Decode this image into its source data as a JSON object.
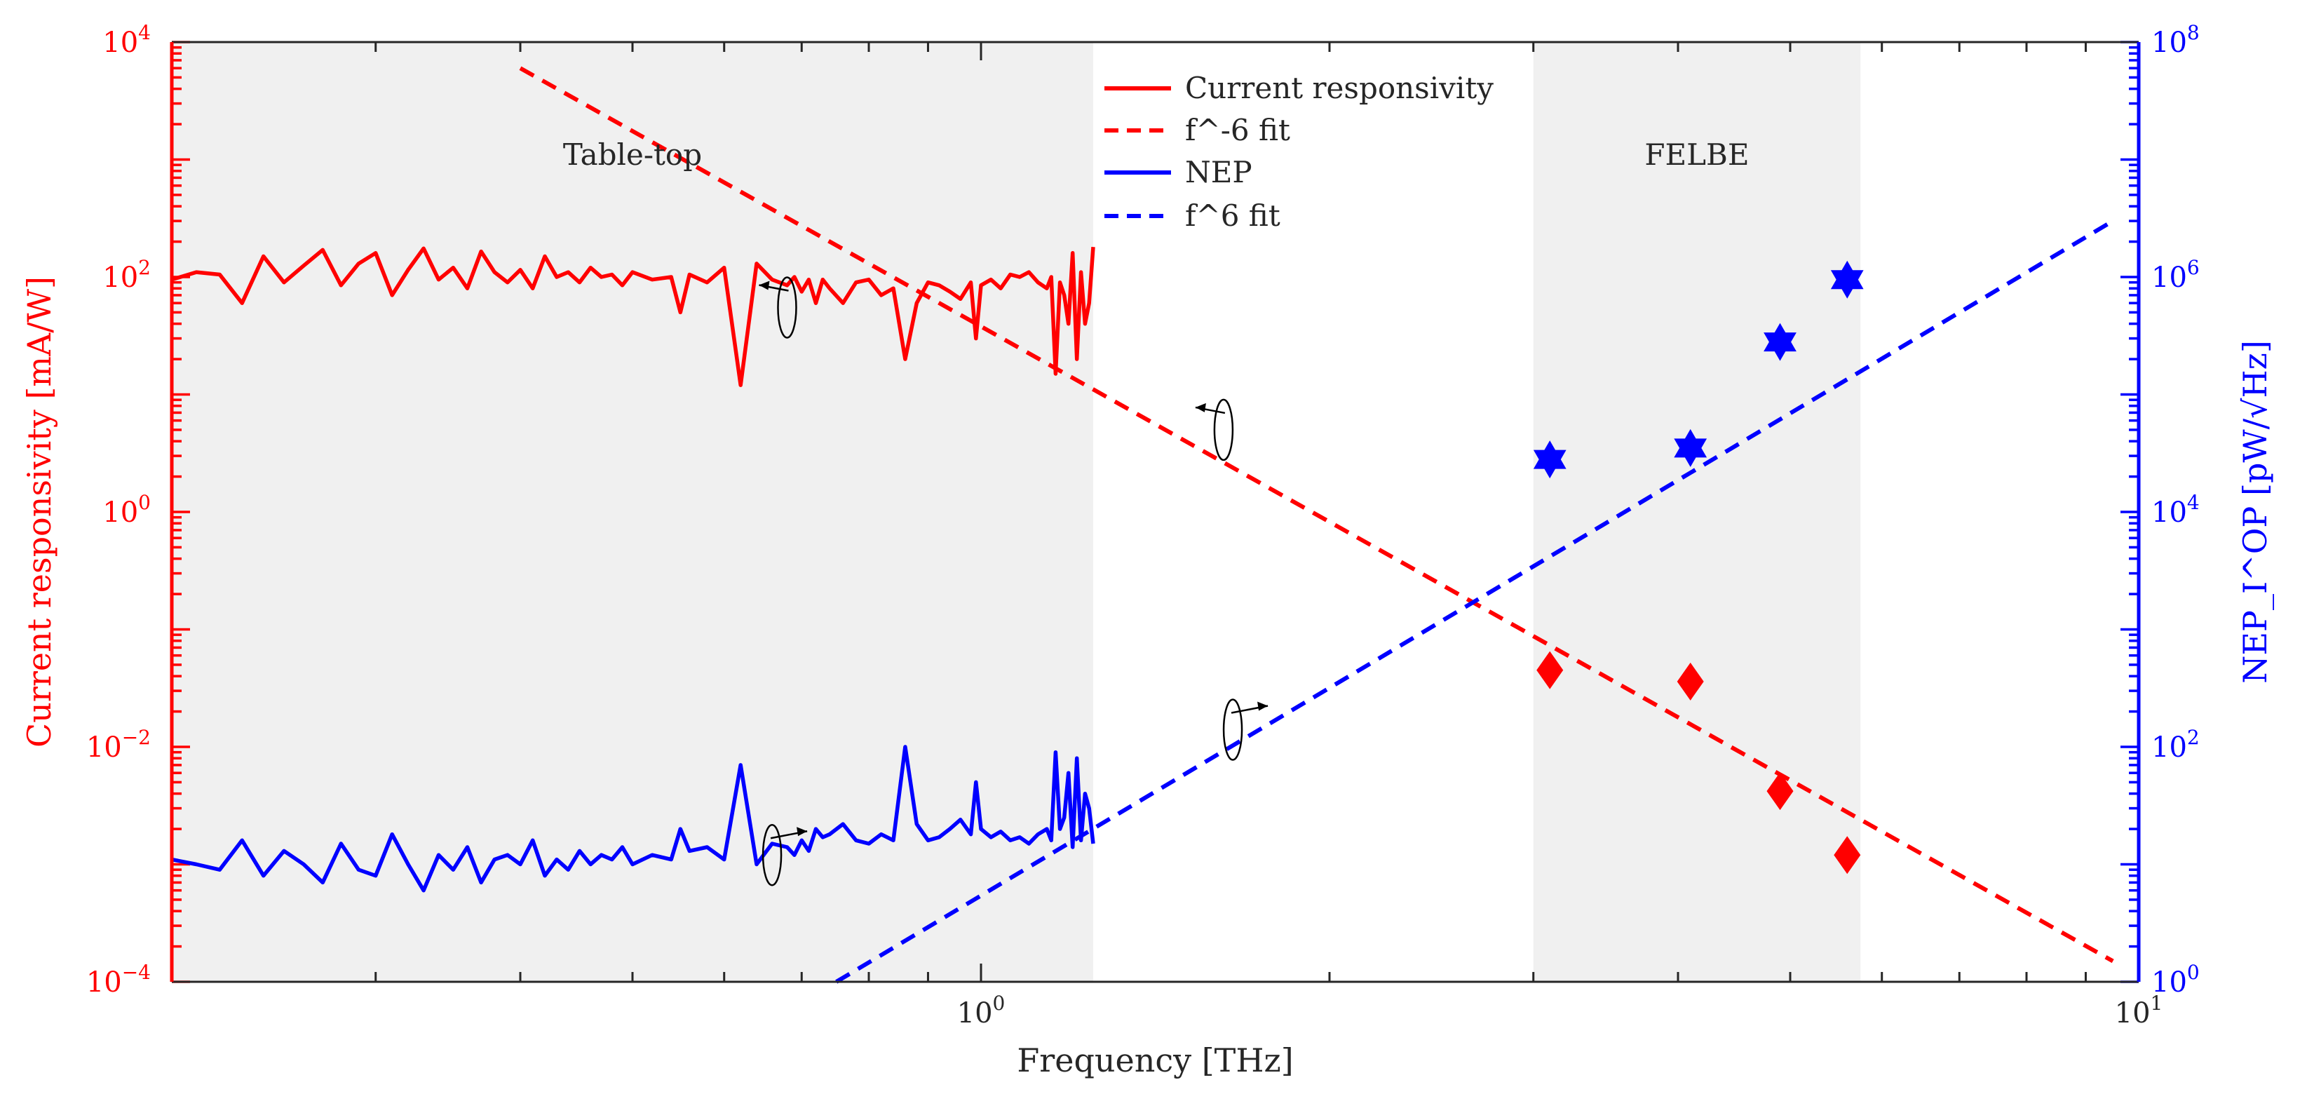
{
  "chart_data": {
    "type": "line",
    "title": "",
    "xlabel": "Frequency [THz]",
    "xscale": "log",
    "xlim": [
      0.2,
      10
    ],
    "xticks": [
      {
        "value": 1,
        "label": "10^0"
      },
      {
        "value": 10,
        "label": "10^1"
      }
    ],
    "y_left": {
      "label": "Current responsivity [mA/W]",
      "scale": "log",
      "lim": [
        0.0001,
        10000
      ],
      "color": "#ff0000",
      "ticks": [
        {
          "value": 0.0001,
          "label": "10^-4"
        },
        {
          "value": 0.01,
          "label": "10^-2"
        },
        {
          "value": 1,
          "label": "10^0"
        },
        {
          "value": 100,
          "label": "10^2"
        },
        {
          "value": 10000,
          "label": "10^4"
        }
      ]
    },
    "y_right": {
      "label": "NEP_I^OP [pW/√Hz]",
      "scale": "log",
      "lim": [
        1,
        100000000
      ],
      "color": "#0000ff",
      "ticks": [
        {
          "value": 1,
          "label": "10^0"
        },
        {
          "value": 100,
          "label": "10^2"
        },
        {
          "value": 10000,
          "label": "10^4"
        },
        {
          "value": 1000000,
          "label": "10^6"
        },
        {
          "value": 100000000,
          "label": "10^8"
        }
      ]
    },
    "regions": [
      {
        "name": "Table-top",
        "x_from": 0.2,
        "x_to": 1.25
      },
      {
        "name": "FELBE",
        "x_from": 3.0,
        "x_to": 5.75
      }
    ],
    "series": [
      {
        "name": "Current responsivity",
        "axis": "left",
        "style": "solid",
        "color": "#ff0000",
        "x": [
          0.2,
          0.21,
          0.22,
          0.23,
          0.24,
          0.25,
          0.26,
          0.27,
          0.28,
          0.29,
          0.3,
          0.31,
          0.32,
          0.33,
          0.34,
          0.35,
          0.36,
          0.37,
          0.38,
          0.39,
          0.4,
          0.41,
          0.42,
          0.43,
          0.44,
          0.45,
          0.46,
          0.47,
          0.48,
          0.49,
          0.5,
          0.52,
          0.54,
          0.55,
          0.56,
          0.58,
          0.6,
          0.62,
          0.64,
          0.66,
          0.68,
          0.69,
          0.7,
          0.71,
          0.72,
          0.73,
          0.74,
          0.76,
          0.78,
          0.8,
          0.82,
          0.84,
          0.86,
          0.88,
          0.9,
          0.92,
          0.94,
          0.96,
          0.98,
          0.99,
          1.0,
          1.02,
          1.04,
          1.06,
          1.08,
          1.1,
          1.12,
          1.14,
          1.15,
          1.16,
          1.17,
          1.18,
          1.19,
          1.2,
          1.21,
          1.22,
          1.23,
          1.24,
          1.25
        ],
        "y": [
          95,
          110,
          105,
          60,
          150,
          90,
          125,
          170,
          85,
          130,
          160,
          70,
          115,
          175,
          95,
          120,
          80,
          165,
          110,
          90,
          115,
          80,
          150,
          100,
          110,
          90,
          120,
          100,
          105,
          85,
          110,
          95,
          100,
          50,
          105,
          90,
          120,
          12,
          130,
          95,
          85,
          100,
          75,
          95,
          60,
          95,
          80,
          60,
          90,
          95,
          70,
          80,
          20,
          60,
          90,
          85,
          75,
          65,
          90,
          30,
          85,
          95,
          80,
          105,
          100,
          110,
          90,
          80,
          100,
          15,
          90,
          70,
          40,
          160,
          20,
          110,
          40,
          60,
          180
        ]
      },
      {
        "name": "f^-6 fit",
        "axis": "left",
        "style": "dashed",
        "color": "#ff0000",
        "x": [
          0.4,
          9.5
        ],
        "y": [
          6000,
          0.00015
        ]
      },
      {
        "name": "NEP",
        "axis": "right",
        "style": "solid",
        "color": "#0000ff",
        "x": [
          0.2,
          0.21,
          0.22,
          0.23,
          0.24,
          0.25,
          0.26,
          0.27,
          0.28,
          0.29,
          0.3,
          0.31,
          0.32,
          0.33,
          0.34,
          0.35,
          0.36,
          0.37,
          0.38,
          0.39,
          0.4,
          0.41,
          0.42,
          0.43,
          0.44,
          0.45,
          0.46,
          0.47,
          0.48,
          0.49,
          0.5,
          0.52,
          0.54,
          0.55,
          0.56,
          0.58,
          0.6,
          0.62,
          0.64,
          0.66,
          0.68,
          0.69,
          0.7,
          0.71,
          0.72,
          0.73,
          0.74,
          0.76,
          0.78,
          0.8,
          0.82,
          0.84,
          0.86,
          0.88,
          0.9,
          0.92,
          0.94,
          0.96,
          0.98,
          0.99,
          1.0,
          1.02,
          1.04,
          1.06,
          1.08,
          1.1,
          1.12,
          1.14,
          1.15,
          1.16,
          1.17,
          1.18,
          1.19,
          1.2,
          1.21,
          1.22,
          1.23,
          1.24,
          1.25
        ],
        "y": [
          11,
          10,
          9,
          16,
          8,
          13,
          10,
          7,
          15,
          9,
          8,
          18,
          10,
          6,
          12,
          9,
          14,
          7,
          11,
          12,
          10,
          16,
          8,
          11,
          9,
          13,
          10,
          12,
          11,
          14,
          10,
          12,
          11,
          20,
          13,
          14,
          11,
          70,
          10,
          15,
          14,
          12,
          16,
          13,
          20,
          17,
          18,
          22,
          16,
          15,
          18,
          16,
          100,
          22,
          16,
          17,
          20,
          24,
          18,
          50,
          20,
          17,
          19,
          16,
          17,
          15,
          18,
          20,
          16,
          90,
          20,
          25,
          60,
          14,
          80,
          16,
          40,
          30,
          15
        ]
      },
      {
        "name": "f^6 fit",
        "axis": "right",
        "style": "dashed",
        "color": "#0000ff",
        "x": [
          0.75,
          9.5
        ],
        "y": [
          1,
          3000000
        ]
      },
      {
        "name": "FELBE responsivity",
        "axis": "left",
        "style": "markers",
        "marker": "diamond",
        "color": "#ff0000",
        "x": [
          3.1,
          4.1,
          4.9,
          5.6
        ],
        "y": [
          0.045,
          0.036,
          0.0042,
          0.0012
        ]
      },
      {
        "name": "FELBE NEP",
        "axis": "right",
        "style": "markers",
        "marker": "hexagram",
        "color": "#0000ff",
        "x": [
          3.1,
          4.1,
          4.9,
          5.6
        ],
        "y": [
          28000,
          35000,
          280000,
          950000
        ]
      }
    ],
    "legend": {
      "placement": "top-center",
      "entries": [
        {
          "label": "Current responsivity",
          "color": "#ff0000",
          "style": "solid"
        },
        {
          "label": "f^-6 fit",
          "color": "#ff0000",
          "style": "dashed"
        },
        {
          "label": "NEP",
          "color": "#0000ff",
          "style": "solid"
        },
        {
          "label": "f^6 fit",
          "color": "#0000ff",
          "style": "dashed"
        }
      ]
    },
    "axis_indicators": [
      {
        "x": 0.68,
        "y": 55,
        "axis": "left",
        "arrow": "left"
      },
      {
        "x": 1.62,
        "y": 5,
        "axis": "left",
        "arrow": "left"
      },
      {
        "x": 0.66,
        "y": 12,
        "axis": "right",
        "arrow": "right"
      },
      {
        "x": 1.65,
        "y": 140,
        "axis": "right",
        "arrow": "right"
      }
    ]
  }
}
